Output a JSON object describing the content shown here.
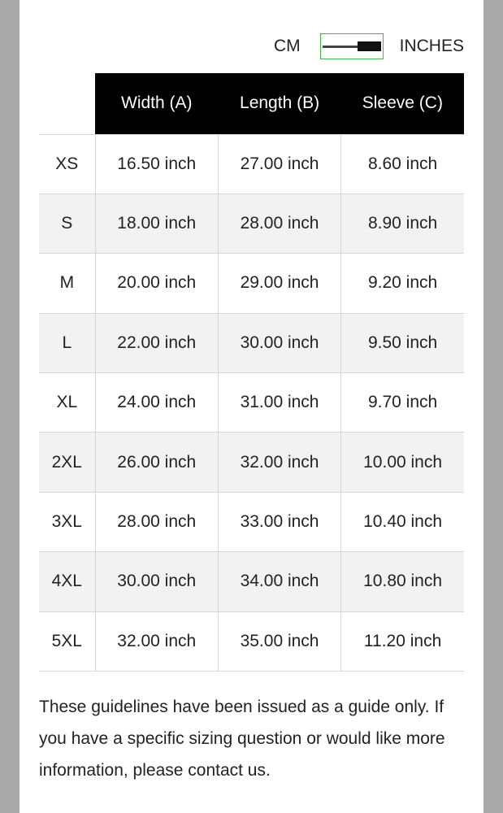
{
  "toggle": {
    "left_label": "CM",
    "right_label": "INCHES",
    "selected": "INCHES",
    "accent": "#4caf50"
  },
  "table": {
    "headers": [
      "",
      "Width (A)",
      "Length (B)",
      "Sleeve (C)"
    ],
    "rows": [
      [
        "XS",
        "16.50 inch",
        "27.00 inch",
        "8.60 inch"
      ],
      [
        "S",
        "18.00 inch",
        "28.00 inch",
        "8.90 inch"
      ],
      [
        "M",
        "20.00 inch",
        "29.00 inch",
        "9.20 inch"
      ],
      [
        "L",
        "22.00 inch",
        "30.00 inch",
        "9.50 inch"
      ],
      [
        "XL",
        "24.00 inch",
        "31.00 inch",
        "9.70 inch"
      ],
      [
        "2XL",
        "26.00 inch",
        "32.00 inch",
        "10.00 inch"
      ],
      [
        "3XL",
        "28.00 inch",
        "33.00 inch",
        "10.40 inch"
      ],
      [
        "4XL",
        "30.00 inch",
        "34.00 inch",
        "10.80 inch"
      ],
      [
        "5XL",
        "32.00 inch",
        "35.00 inch",
        "11.20 inch"
      ]
    ]
  },
  "note": "These guidelines have been issued as a guide only. If you have a specific sizing question or would like more information, please contact us."
}
